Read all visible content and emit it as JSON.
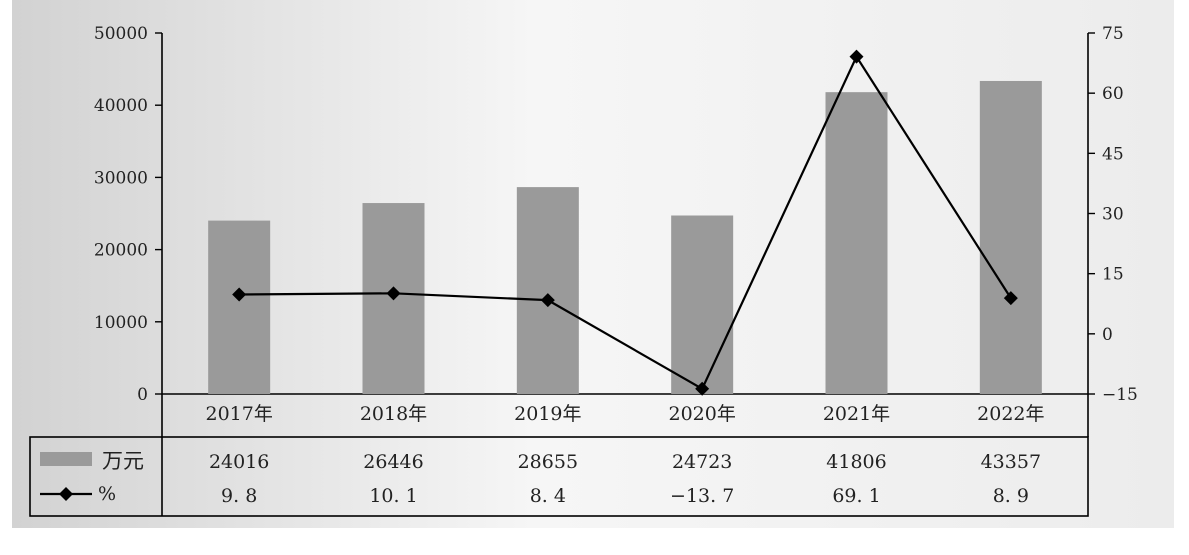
{
  "chart_data": {
    "type": "bar",
    "categories": [
      "2017年",
      "2018年",
      "2019年",
      "2020年",
      "2021年",
      "2022年"
    ],
    "series": [
      {
        "name": "万元",
        "type": "bar",
        "axis": "left",
        "values": [
          24016,
          26446,
          28655,
          24723,
          41806,
          43357
        ],
        "value_labels": [
          "24016",
          "26446",
          "28655",
          "24723",
          "41806",
          "43357"
        ],
        "color": "#9a9a9a"
      },
      {
        "name": "%",
        "type": "line",
        "axis": "right",
        "marker": "diamond",
        "values": [
          9.8,
          10.1,
          8.4,
          -13.7,
          69.1,
          8.9
        ],
        "value_labels": [
          "9. 8",
          "10. 1",
          "8. 4",
          "−13. 7",
          "69. 1",
          "8. 9"
        ],
        "color": "#000000"
      }
    ],
    "y_left": {
      "ylim": [
        0,
        50000
      ],
      "ticks": [
        "0",
        "10000",
        "20000",
        "30000",
        "40000",
        "50000"
      ]
    },
    "y_right": {
      "ylim": [
        -15,
        75
      ],
      "ticks": [
        "−15",
        "0",
        "15",
        "30",
        "45",
        "60",
        "75"
      ]
    },
    "grid": false,
    "legend": "data-table-left",
    "data_table": true
  }
}
